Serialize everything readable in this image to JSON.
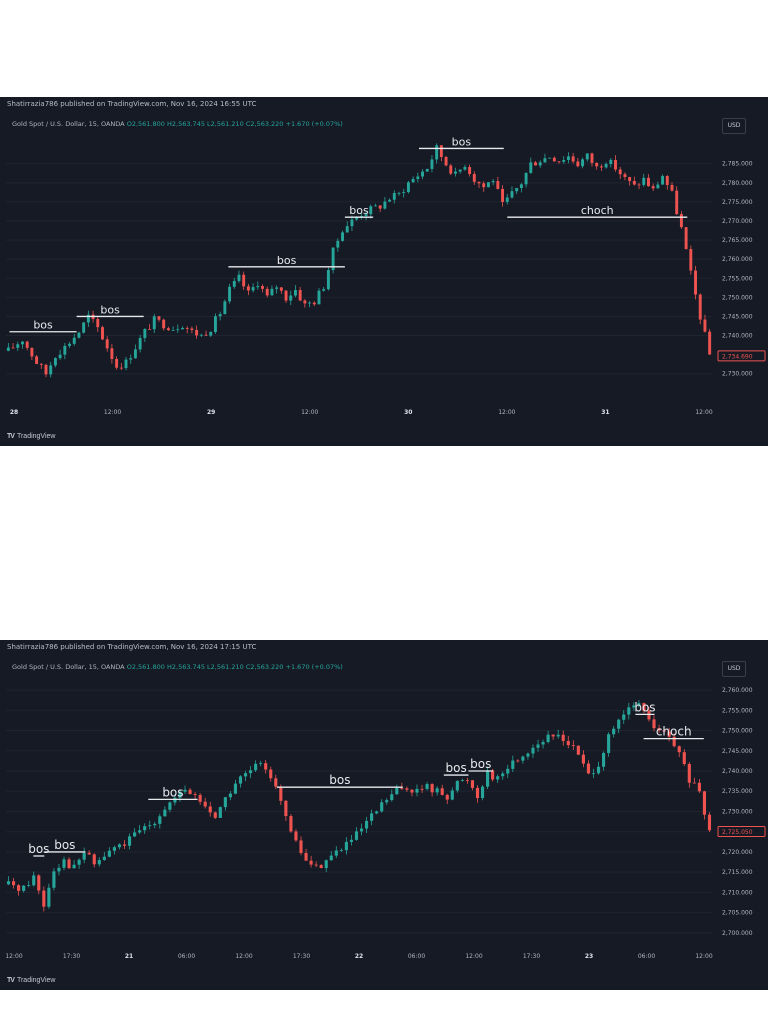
{
  "chart_data": [
    {
      "type": "candlestick",
      "publisher_line": "Shatirrazia786 published on TradingView.com, Nov 16, 2024 16:55 UTC",
      "symbol_line": "Gold Spot / U.S. Dollar, 15, OANDA",
      "ohlc": {
        "o": "O2,561.800",
        "h": "H2,563.745",
        "l": "L2,561.210",
        "c": "C2,563.220",
        "chg": "+1.670 (+0.07%)"
      },
      "currency": "USD",
      "ylim": [
        2726,
        2792
      ],
      "y_ticks": [
        "2,785.000",
        "2,780.000",
        "2,775.000",
        "2,770.000",
        "2,765.000",
        "2,760.000",
        "2,755.000",
        "2,750.000",
        "2,745.000",
        "2,740.000",
        "2,730.000"
      ],
      "y_tick_values": [
        2785,
        2780,
        2775,
        2770,
        2765,
        2760,
        2755,
        2750,
        2745,
        2740,
        2730
      ],
      "x_ticks": [
        "28",
        "12:00",
        "29",
        "12:00",
        "30",
        "12:00",
        "31",
        "12:00"
      ],
      "last_price": "2,734.690",
      "last_value": 2734.69,
      "price_path": [
        [
          0,
          2736
        ],
        [
          3,
          2739
        ],
        [
          6,
          2733
        ],
        [
          8,
          2730
        ],
        [
          10,
          2735
        ],
        [
          12,
          2737
        ],
        [
          15,
          2741
        ],
        [
          17,
          2745
        ],
        [
          19,
          2742
        ],
        [
          21,
          2737
        ],
        [
          23,
          2732
        ],
        [
          25,
          2733
        ],
        [
          27,
          2737
        ],
        [
          29,
          2741
        ],
        [
          31,
          2744
        ],
        [
          33,
          2743
        ],
        [
          35,
          2742
        ],
        [
          37,
          2743
        ],
        [
          39,
          2741
        ],
        [
          41,
          2740
        ],
        [
          43,
          2742
        ],
        [
          45,
          2746
        ],
        [
          47,
          2752
        ],
        [
          49,
          2755
        ],
        [
          51,
          2751
        ],
        [
          53,
          2754
        ],
        [
          55,
          2750
        ],
        [
          57,
          2753
        ],
        [
          59,
          2750
        ],
        [
          61,
          2752
        ],
        [
          63,
          2748
        ],
        [
          65,
          2749
        ],
        [
          67,
          2753
        ],
        [
          69,
          2762
        ],
        [
          71,
          2768
        ],
        [
          73,
          2770
        ],
        [
          75,
          2772
        ],
        [
          77,
          2773
        ],
        [
          79,
          2774
        ],
        [
          81,
          2776
        ],
        [
          83,
          2777
        ],
        [
          85,
          2780
        ],
        [
          87,
          2782
        ],
        [
          89,
          2784
        ],
        [
          91,
          2789
        ],
        [
          93,
          2785
        ],
        [
          95,
          2782
        ],
        [
          97,
          2785
        ],
        [
          99,
          2781
        ],
        [
          101,
          2779
        ],
        [
          103,
          2781
        ],
        [
          105,
          2774
        ],
        [
          107,
          2777
        ],
        [
          109,
          2780
        ],
        [
          111,
          2785
        ],
        [
          113,
          2786
        ],
        [
          115,
          2787
        ],
        [
          117,
          2786
        ],
        [
          119,
          2787
        ],
        [
          121,
          2785
        ],
        [
          123,
          2787
        ],
        [
          125,
          2784
        ],
        [
          127,
          2786
        ],
        [
          129,
          2784
        ],
        [
          131,
          2781
        ],
        [
          133,
          2779
        ],
        [
          135,
          2781
        ],
        [
          137,
          2778
        ],
        [
          139,
          2782
        ],
        [
          141,
          2777
        ],
        [
          143,
          2768
        ],
        [
          145,
          2756
        ],
        [
          147,
          2745
        ],
        [
          149,
          2735
        ]
      ],
      "bars_count": 150,
      "annotations": [
        {
          "label": "bos",
          "x1": 1,
          "x2": 20,
          "y": 2741
        },
        {
          "label": "bos",
          "x1": 20,
          "x2": 39,
          "y": 2745
        },
        {
          "label": "bos",
          "x1": 63,
          "x2": 96,
          "y": 2758
        },
        {
          "label": "bos",
          "x1": 96,
          "x2": 104,
          "y": 2771
        },
        {
          "label": "bos",
          "x1": 117,
          "x2": 141,
          "y": 2789
        },
        {
          "label": "choch",
          "x1": 142,
          "x2": 193,
          "y": 2771
        }
      ],
      "logo": "TradingView"
    },
    {
      "type": "candlestick",
      "publisher_line": "Shatirrazia786 published on TradingView.com, Nov 16, 2024 17:15 UTC",
      "symbol_line": "Gold Spot / U.S. Dollar, 15, OANDA",
      "ohlc": {
        "o": "O2,561.800",
        "h": "H2,563.745",
        "l": "L2,561.210",
        "c": "C2,563.220",
        "chg": "+1.670 (+0.07%)"
      },
      "currency": "USD",
      "ylim": [
        2697,
        2762
      ],
      "y_ticks": [
        "2,760.000",
        "2,755.000",
        "2,750.000",
        "2,745.000",
        "2,740.000",
        "2,735.000",
        "2,730.000",
        "2,725.000",
        "2,720.000",
        "2,715.000",
        "2,710.000",
        "2,705.000",
        "2,700.000"
      ],
      "y_tick_values": [
        2760,
        2755,
        2750,
        2745,
        2740,
        2735,
        2730,
        2725,
        2720,
        2715,
        2710,
        2705,
        2700
      ],
      "x_ticks": [
        "12:00",
        "17:30",
        "21",
        "06:00",
        "12:00",
        "17:30",
        "22",
        "06:00",
        "12:00",
        "17:30",
        "23",
        "06:00",
        "12:00"
      ],
      "last_price": "2,725.050",
      "last_value": 2725.05,
      "price_path": [
        [
          0,
          2712
        ],
        [
          3,
          2711
        ],
        [
          5,
          2714
        ],
        [
          7,
          2707
        ],
        [
          9,
          2716
        ],
        [
          11,
          2718
        ],
        [
          13,
          2716
        ],
        [
          15,
          2720
        ],
        [
          17,
          2717
        ],
        [
          19,
          2719
        ],
        [
          21,
          2721
        ],
        [
          23,
          2722
        ],
        [
          25,
          2724
        ],
        [
          27,
          2726
        ],
        [
          29,
          2728
        ],
        [
          31,
          2731
        ],
        [
          33,
          2733
        ],
        [
          35,
          2735
        ],
        [
          37,
          2734
        ],
        [
          39,
          2731
        ],
        [
          41,
          2729
        ],
        [
          43,
          2733
        ],
        [
          45,
          2737
        ],
        [
          47,
          2739
        ],
        [
          49,
          2741
        ],
        [
          51,
          2741
        ],
        [
          53,
          2737
        ],
        [
          55,
          2728
        ],
        [
          57,
          2722
        ],
        [
          59,
          2718
        ],
        [
          61,
          2716
        ],
        [
          63,
          2718
        ],
        [
          65,
          2720
        ],
        [
          67,
          2722
        ],
        [
          69,
          2724
        ],
        [
          71,
          2727
        ],
        [
          73,
          2730
        ],
        [
          75,
          2733
        ],
        [
          77,
          2735
        ],
        [
          79,
          2736
        ],
        [
          81,
          2735
        ],
        [
          83,
          2736
        ],
        [
          85,
          2735
        ],
        [
          87,
          2734
        ],
        [
          89,
          2737
        ],
        [
          91,
          2738
        ],
        [
          93,
          2734
        ],
        [
          95,
          2740
        ],
        [
          97,
          2738
        ],
        [
          99,
          2741
        ],
        [
          101,
          2743
        ],
        [
          103,
          2745
        ],
        [
          105,
          2747
        ],
        [
          107,
          2748
        ],
        [
          109,
          2749
        ],
        [
          111,
          2747
        ],
        [
          113,
          2744
        ],
        [
          115,
          2739
        ],
        [
          117,
          2742
        ],
        [
          119,
          2748
        ],
        [
          121,
          2752
        ],
        [
          123,
          2755
        ],
        [
          125,
          2757
        ],
        [
          127,
          2752
        ],
        [
          129,
          2750
        ],
        [
          131,
          2748
        ],
        [
          133,
          2744
        ],
        [
          135,
          2738
        ],
        [
          137,
          2734
        ],
        [
          139,
          2725
        ]
      ],
      "bars_count": 140,
      "annotations": [
        {
          "label": "bos",
          "x1": 10,
          "x2": 14,
          "y": 2719
        },
        {
          "label": "bos",
          "x1": 14,
          "x2": 29,
          "y": 2720
        },
        {
          "label": "bos",
          "x1": 52,
          "x2": 70,
          "y": 2733
        },
        {
          "label": "bos",
          "x1": 99,
          "x2": 145,
          "y": 2736
        },
        {
          "label": "bos",
          "x1": 160,
          "x2": 169,
          "y": 2739
        },
        {
          "label": "bos",
          "x1": 169,
          "x2": 178,
          "y": 2740
        },
        {
          "label": "bos",
          "x1": 230,
          "x2": 237,
          "y": 2754
        },
        {
          "label": "choch",
          "x1": 233,
          "x2": 255,
          "y": 2748
        }
      ],
      "logo": "TradingView"
    }
  ]
}
